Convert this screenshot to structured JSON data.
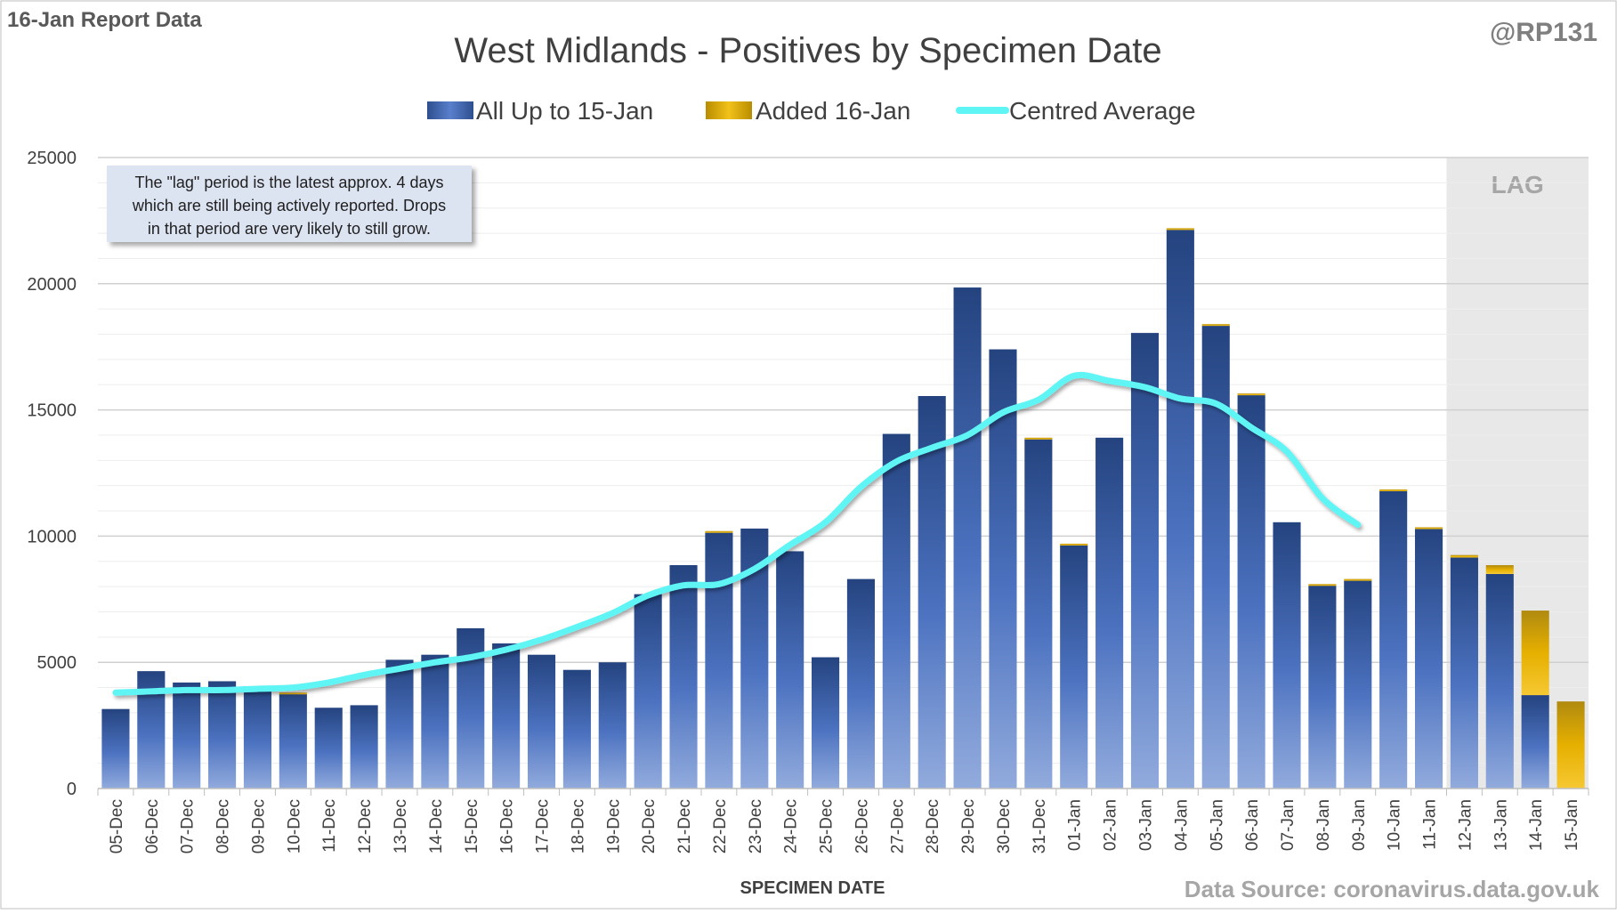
{
  "header": {
    "report_label": "16-Jan Report Data",
    "author": "@RP131",
    "source": "Data Source: coronavirus.data.gov.uk"
  },
  "note": {
    "lines": [
      "The \"lag\" period is the latest approx. 4 days",
      "which are still being actively reported.  Drops",
      "in that period are very likely to still grow."
    ]
  },
  "lag_label": "LAG",
  "colors": {
    "bar_base": "#2e4f8f",
    "bar_light": "#8fa8de",
    "added": "#e8b400",
    "average": "#5ff5f5",
    "lag_shade": "#e8e8e8",
    "grid": "#d9d9d9"
  },
  "chart_data": {
    "type": "bar",
    "title": "West Midlands - Positives by Specimen Date",
    "xlabel": "SPECIMEN DATE",
    "ylabel": "",
    "ylim": [
      0,
      25000
    ],
    "yticks": [
      0,
      5000,
      10000,
      15000,
      20000,
      25000
    ],
    "stacked": true,
    "legend_position": "top",
    "grid": true,
    "categories": [
      "05-Dec",
      "06-Dec",
      "07-Dec",
      "08-Dec",
      "09-Dec",
      "10-Dec",
      "11-Dec",
      "12-Dec",
      "13-Dec",
      "14-Dec",
      "15-Dec",
      "16-Dec",
      "17-Dec",
      "18-Dec",
      "19-Dec",
      "20-Dec",
      "21-Dec",
      "22-Dec",
      "23-Dec",
      "24-Dec",
      "25-Dec",
      "26-Dec",
      "27-Dec",
      "28-Dec",
      "29-Dec",
      "30-Dec",
      "31-Dec",
      "01-Jan",
      "02-Jan",
      "03-Jan",
      "04-Jan",
      "05-Jan",
      "06-Jan",
      "07-Jan",
      "08-Jan",
      "09-Jan",
      "10-Jan",
      "11-Jan",
      "12-Jan",
      "13-Jan",
      "14-Jan",
      "15-Jan"
    ],
    "lag_categories": [
      "12-Jan",
      "13-Jan",
      "14-Jan",
      "15-Jan"
    ],
    "series": [
      {
        "name": "All Up to 15-Jan",
        "values": [
          3150,
          4650,
          4200,
          4250,
          4050,
          3750,
          3200,
          3300,
          5100,
          5300,
          6350,
          5750,
          5300,
          4700,
          5000,
          7700,
          8850,
          10150,
          10300,
          9400,
          5200,
          8300,
          14050,
          15550,
          19850,
          17400,
          13850,
          9650,
          13900,
          18050,
          22150,
          18350,
          15600,
          10550,
          8050,
          8250,
          11800,
          10300,
          9150,
          8500,
          3700,
          0
        ]
      },
      {
        "name": "Added 16-Jan",
        "values": [
          0,
          0,
          0,
          0,
          0,
          50,
          0,
          0,
          0,
          0,
          0,
          0,
          0,
          0,
          0,
          0,
          0,
          50,
          0,
          0,
          0,
          0,
          0,
          0,
          0,
          0,
          50,
          50,
          0,
          0,
          50,
          50,
          50,
          0,
          50,
          50,
          50,
          50,
          100,
          350,
          3350,
          3450
        ]
      },
      {
        "name": "Centred Average",
        "type": "line",
        "values": [
          3800,
          3850,
          3900,
          3900,
          3950,
          4000,
          4200,
          4500,
          4750,
          5000,
          5200,
          5500,
          5900,
          6400,
          6950,
          7650,
          8050,
          8100,
          8700,
          9650,
          10550,
          11950,
          12950,
          13500,
          14000,
          14900,
          15400,
          16350,
          16150,
          15900,
          15450,
          15250,
          14300,
          13350,
          11500,
          10450,
          null,
          null,
          null,
          null,
          null,
          null
        ]
      }
    ]
  }
}
